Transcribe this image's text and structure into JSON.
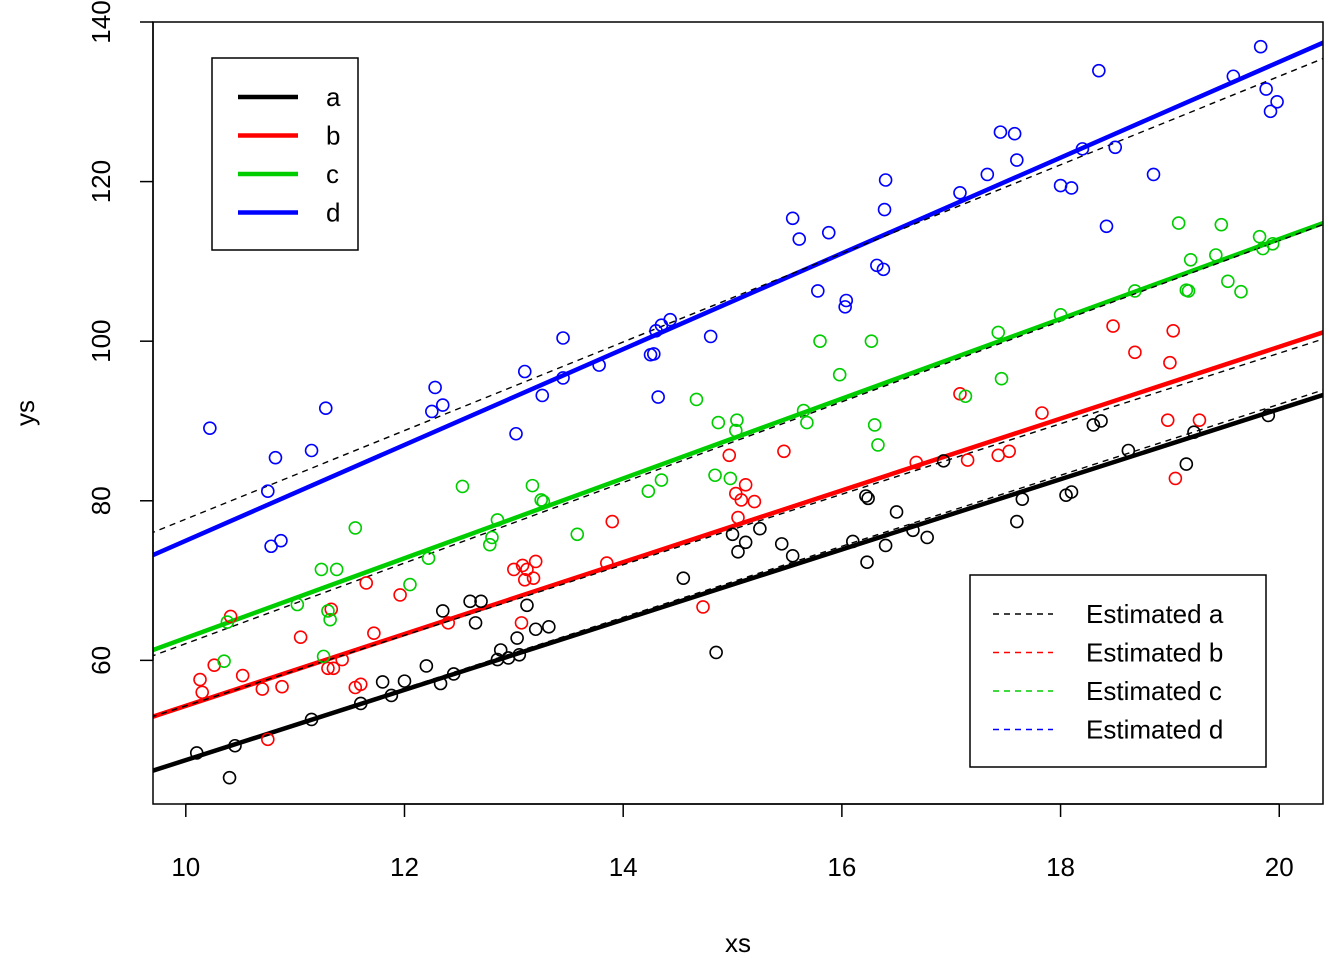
{
  "chart_data": {
    "type": "scatter",
    "title": "",
    "xlabel": "xs",
    "ylabel": "ys",
    "xlim": [
      9.7,
      20.4
    ],
    "ylim": [
      42,
      140
    ],
    "x_ticks": [
      10,
      12,
      14,
      16,
      18,
      20
    ],
    "y_ticks": [
      60,
      80,
      100,
      120,
      140
    ],
    "grid": false,
    "legends": [
      {
        "placement": "top-left",
        "entries": [
          {
            "label": "a",
            "color": "#000000",
            "style": "solid"
          },
          {
            "label": "b",
            "color": "#FF0000",
            "style": "solid"
          },
          {
            "label": "c",
            "color": "#00CD00",
            "style": "solid"
          },
          {
            "label": "d",
            "color": "#0000FF",
            "style": "solid"
          }
        ]
      },
      {
        "placement": "bottom-right",
        "entries": [
          {
            "label": "Estimated a",
            "color": "#000000",
            "style": "dashed"
          },
          {
            "label": "Estimated b",
            "color": "#FF0000",
            "style": "dashed"
          },
          {
            "label": "Estimated c",
            "color": "#00CD00",
            "style": "dashed"
          },
          {
            "label": "Estimated d",
            "color": "#0000FF",
            "style": "dashed"
          }
        ]
      }
    ],
    "series": [
      {
        "name": "a",
        "color": "#000000",
        "true_line": {
          "intercept": 3.5,
          "slope": 4.4
        },
        "estimated_line": {
          "intercept": 3.1,
          "slope": 4.45
        },
        "points": [
          [
            10.1,
            48.4
          ],
          [
            10.4,
            45.3
          ],
          [
            10.45,
            49.3
          ],
          [
            11.15,
            52.6
          ],
          [
            11.6,
            54.6
          ],
          [
            11.8,
            57.3
          ],
          [
            11.88,
            55.6
          ],
          [
            12.0,
            57.4
          ],
          [
            12.2,
            59.3
          ],
          [
            12.33,
            57.1
          ],
          [
            12.35,
            66.2
          ],
          [
            12.45,
            58.3
          ],
          [
            12.6,
            67.4
          ],
          [
            12.65,
            64.7
          ],
          [
            12.7,
            67.4
          ],
          [
            12.85,
            60.1
          ],
          [
            12.88,
            61.3
          ],
          [
            12.95,
            60.3
          ],
          [
            13.03,
            62.8
          ],
          [
            13.05,
            60.7
          ],
          [
            13.12,
            66.9
          ],
          [
            13.2,
            63.9
          ],
          [
            13.32,
            64.2
          ],
          [
            14.55,
            70.3
          ],
          [
            14.85,
            61.0
          ],
          [
            15.0,
            75.8
          ],
          [
            15.05,
            73.6
          ],
          [
            15.12,
            74.8
          ],
          [
            15.25,
            76.5
          ],
          [
            15.45,
            74.6
          ],
          [
            15.55,
            73.1
          ],
          [
            16.1,
            74.9
          ],
          [
            16.22,
            80.6
          ],
          [
            16.23,
            72.3
          ],
          [
            16.24,
            80.3
          ],
          [
            16.4,
            74.4
          ],
          [
            16.5,
            78.6
          ],
          [
            16.65,
            76.3
          ],
          [
            16.78,
            75.4
          ],
          [
            16.93,
            85.0
          ],
          [
            17.6,
            77.4
          ],
          [
            17.65,
            80.2
          ],
          [
            18.05,
            80.7
          ],
          [
            18.1,
            81.1
          ],
          [
            18.3,
            89.5
          ],
          [
            18.37,
            90.0
          ],
          [
            18.62,
            86.3
          ],
          [
            19.15,
            84.6
          ],
          [
            19.22,
            88.6
          ],
          [
            19.9,
            90.7
          ]
        ]
      },
      {
        "name": "b",
        "color": "#FF0000",
        "true_line": {
          "intercept": 9.3,
          "slope": 4.5
        },
        "estimated_line": {
          "intercept": 10.1,
          "slope": 4.42
        },
        "points": [
          [
            10.13,
            57.6
          ],
          [
            10.15,
            56.0
          ],
          [
            10.26,
            59.4
          ],
          [
            10.41,
            65.5
          ],
          [
            10.52,
            58.1
          ],
          [
            10.7,
            56.4
          ],
          [
            10.75,
            50.1
          ],
          [
            10.88,
            56.7
          ],
          [
            11.05,
            62.9
          ],
          [
            11.3,
            59.0
          ],
          [
            11.33,
            66.4
          ],
          [
            11.35,
            59.0
          ],
          [
            11.43,
            60.1
          ],
          [
            11.55,
            56.6
          ],
          [
            11.6,
            57.0
          ],
          [
            11.65,
            69.7
          ],
          [
            11.72,
            63.4
          ],
          [
            11.96,
            68.2
          ],
          [
            12.4,
            64.7
          ],
          [
            13.0,
            71.4
          ],
          [
            13.07,
            64.7
          ],
          [
            13.08,
            71.9
          ],
          [
            13.1,
            70.1
          ],
          [
            13.12,
            71.4
          ],
          [
            13.18,
            70.3
          ],
          [
            13.2,
            72.4
          ],
          [
            13.85,
            72.2
          ],
          [
            13.9,
            77.4
          ],
          [
            14.73,
            66.7
          ],
          [
            14.97,
            85.7
          ],
          [
            15.03,
            80.9
          ],
          [
            15.05,
            77.9
          ],
          [
            15.08,
            80.1
          ],
          [
            15.12,
            82.0
          ],
          [
            15.2,
            79.9
          ],
          [
            15.47,
            86.2
          ],
          [
            16.68,
            84.8
          ],
          [
            17.08,
            93.4
          ],
          [
            17.15,
            85.1
          ],
          [
            17.43,
            85.7
          ],
          [
            17.53,
            86.2
          ],
          [
            17.83,
            91.0
          ],
          [
            18.48,
            101.9
          ],
          [
            18.68,
            98.6
          ],
          [
            18.98,
            90.1
          ],
          [
            19.0,
            97.3
          ],
          [
            19.03,
            101.3
          ],
          [
            19.05,
            82.8
          ],
          [
            19.27,
            90.1
          ]
        ]
      },
      {
        "name": "c",
        "color": "#00CD00",
        "true_line": {
          "intercept": 12.8,
          "slope": 5.0
        },
        "estimated_line": {
          "intercept": 11.6,
          "slope": 5.05
        },
        "points": [
          [
            10.35,
            59.9
          ],
          [
            10.38,
            64.8
          ],
          [
            11.02,
            67.0
          ],
          [
            11.24,
            71.4
          ],
          [
            11.26,
            60.5
          ],
          [
            11.3,
            66.2
          ],
          [
            11.32,
            65.1
          ],
          [
            11.38,
            71.4
          ],
          [
            11.55,
            76.6
          ],
          [
            12.05,
            69.5
          ],
          [
            12.22,
            72.8
          ],
          [
            12.53,
            81.8
          ],
          [
            12.78,
            74.5
          ],
          [
            12.8,
            75.4
          ],
          [
            12.85,
            77.6
          ],
          [
            13.17,
            81.9
          ],
          [
            13.25,
            80.1
          ],
          [
            13.27,
            79.9
          ],
          [
            13.58,
            75.8
          ],
          [
            14.23,
            81.2
          ],
          [
            14.35,
            82.6
          ],
          [
            14.67,
            92.7
          ],
          [
            14.84,
            83.2
          ],
          [
            14.87,
            89.8
          ],
          [
            14.98,
            82.8
          ],
          [
            15.03,
            88.8
          ],
          [
            15.04,
            90.1
          ],
          [
            15.65,
            91.3
          ],
          [
            15.68,
            89.8
          ],
          [
            15.8,
            100.0
          ],
          [
            15.98,
            95.8
          ],
          [
            16.27,
            100.0
          ],
          [
            16.3,
            89.5
          ],
          [
            16.33,
            87.0
          ],
          [
            17.13,
            93.1
          ],
          [
            17.43,
            101.1
          ],
          [
            17.46,
            95.3
          ],
          [
            18.0,
            103.3
          ],
          [
            18.68,
            106.3
          ],
          [
            19.08,
            114.8
          ],
          [
            19.15,
            106.4
          ],
          [
            19.17,
            106.3
          ],
          [
            19.19,
            110.2
          ],
          [
            19.42,
            110.8
          ],
          [
            19.47,
            114.6
          ],
          [
            19.53,
            107.5
          ],
          [
            19.65,
            106.2
          ],
          [
            19.82,
            113.1
          ],
          [
            19.85,
            111.6
          ],
          [
            19.94,
            112.2
          ]
        ]
      },
      {
        "name": "d",
        "color": "#0000FF",
        "true_line": {
          "intercept": 15.0,
          "slope": 6.0
        },
        "estimated_line": {
          "intercept": 22.2,
          "slope": 5.55
        },
        "points": [
          [
            10.22,
            89.1
          ],
          [
            10.75,
            81.2
          ],
          [
            10.78,
            74.3
          ],
          [
            10.82,
            85.4
          ],
          [
            10.87,
            75.0
          ],
          [
            11.15,
            86.3
          ],
          [
            11.28,
            91.6
          ],
          [
            12.25,
            91.2
          ],
          [
            12.28,
            94.2
          ],
          [
            12.35,
            92.0
          ],
          [
            13.02,
            88.4
          ],
          [
            13.1,
            96.2
          ],
          [
            13.26,
            93.2
          ],
          [
            13.45,
            100.4
          ],
          [
            13.45,
            95.4
          ],
          [
            13.78,
            97.0
          ],
          [
            14.25,
            98.3
          ],
          [
            14.28,
            98.4
          ],
          [
            14.3,
            101.3
          ],
          [
            14.32,
            93.0
          ],
          [
            14.35,
            102.0
          ],
          [
            14.43,
            102.7
          ],
          [
            14.8,
            100.6
          ],
          [
            15.55,
            115.4
          ],
          [
            15.61,
            112.8
          ],
          [
            15.78,
            106.3
          ],
          [
            15.88,
            113.6
          ],
          [
            16.03,
            104.3
          ],
          [
            16.04,
            105.1
          ],
          [
            16.32,
            109.5
          ],
          [
            16.38,
            109.0
          ],
          [
            16.39,
            116.5
          ],
          [
            16.4,
            120.2
          ],
          [
            17.08,
            118.6
          ],
          [
            17.33,
            120.9
          ],
          [
            17.45,
            126.2
          ],
          [
            17.58,
            126.0
          ],
          [
            17.6,
            122.7
          ],
          [
            18.0,
            119.5
          ],
          [
            18.1,
            119.2
          ],
          [
            18.2,
            124.1
          ],
          [
            18.35,
            133.9
          ],
          [
            18.42,
            114.4
          ],
          [
            18.5,
            124.3
          ],
          [
            18.85,
            120.9
          ],
          [
            19.58,
            133.2
          ],
          [
            19.83,
            136.9
          ],
          [
            19.88,
            131.6
          ],
          [
            19.92,
            128.8
          ],
          [
            19.98,
            130.0
          ]
        ]
      }
    ]
  }
}
